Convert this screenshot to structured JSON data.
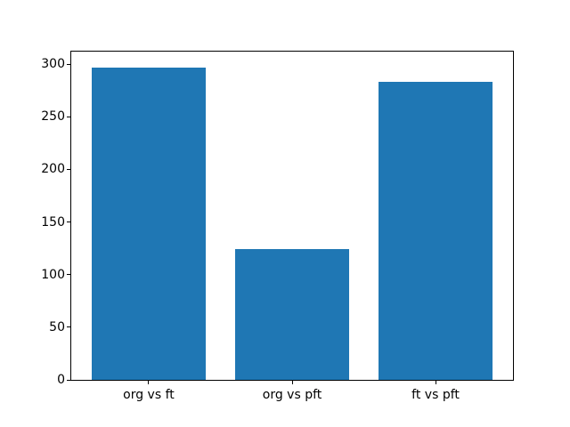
{
  "figure": {
    "background": "#ffffff"
  },
  "chart_data": {
    "type": "bar",
    "title": "",
    "xlabel": "",
    "ylabel": "",
    "categories": [
      "org vs ft",
      "org vs pft",
      "ft vs pft"
    ],
    "values": [
      297,
      124,
      283
    ],
    "bar_color": "#1f77b4",
    "axis_color": "#000000",
    "text_color": "#000000",
    "ylim": [
      0,
      311.85
    ],
    "yticks": [
      0,
      50,
      100,
      150,
      200,
      250,
      300
    ],
    "bar_width_fraction": 0.8,
    "x_margin_fraction": 0.05,
    "grid": false,
    "legend_position": "none"
  }
}
